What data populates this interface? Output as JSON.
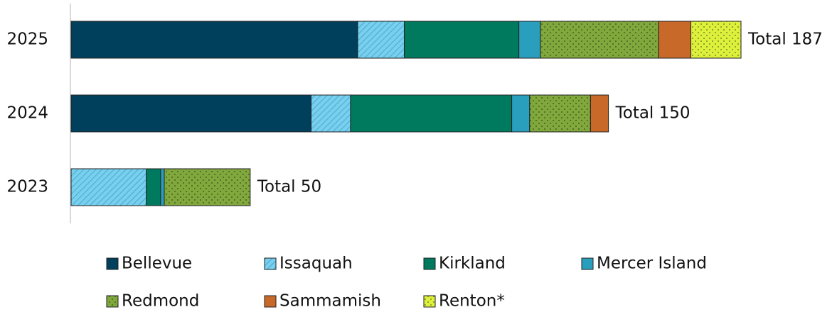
{
  "chart_data": {
    "type": "stacked_barh",
    "categories": [
      "2025",
      "2024",
      "2023"
    ],
    "series": [
      {
        "name": "Bellevue",
        "color": "#00405c",
        "pattern": "none",
        "values": [
          80,
          67,
          0
        ]
      },
      {
        "name": "Issaquah",
        "color": "#78cfee",
        "pattern": "hatch",
        "values": [
          13,
          11,
          21
        ]
      },
      {
        "name": "Kirkland",
        "color": "#007a5e",
        "pattern": "none",
        "values": [
          32,
          45,
          4
        ]
      },
      {
        "name": "Mercer Island",
        "color": "#2a9fbd",
        "pattern": "none",
        "values": [
          6,
          5,
          1
        ]
      },
      {
        "name": "Redmond",
        "color": "#80a83c",
        "pattern": "dots",
        "values": [
          33,
          17,
          24
        ]
      },
      {
        "name": "Sammamish",
        "color": "#c8692a",
        "pattern": "none",
        "values": [
          9,
          5,
          0
        ]
      },
      {
        "name": "Renton*",
        "color": "#dcf03c",
        "pattern": "dots",
        "values": [
          14,
          0,
          0
        ]
      }
    ],
    "totals": [
      187,
      150,
      50
    ],
    "total_labels": [
      "Total 187",
      "Total 150",
      "Total 50"
    ],
    "xlim": [
      0,
      187
    ],
    "legend": "bottom"
  }
}
